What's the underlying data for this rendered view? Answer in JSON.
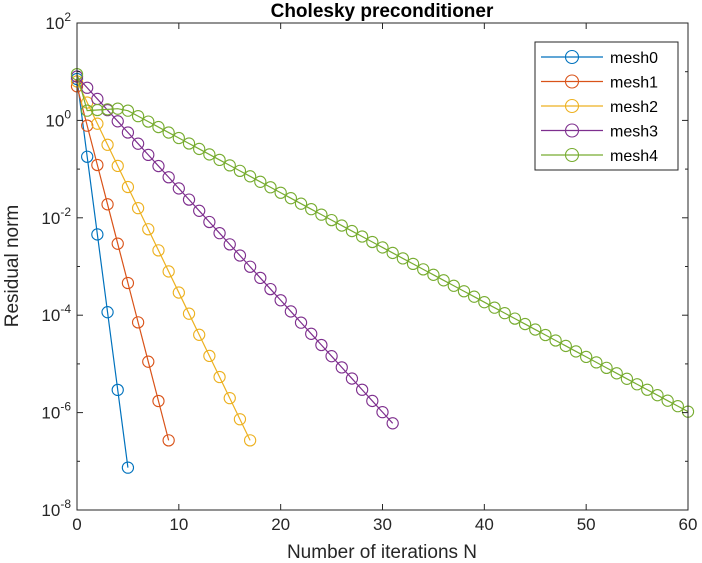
{
  "chart_data": {
    "type": "line",
    "title": "Cholesky preconditioner",
    "xlabel": "Number of iterations N",
    "ylabel": "Residual norm",
    "xlim": [
      0,
      60
    ],
    "ylim": [
      1e-08,
      100
    ],
    "yscale": "log",
    "grid": false,
    "legend_position": "top-right",
    "marker": "circle",
    "x_ticks": [
      "0",
      "10",
      "20",
      "30",
      "40",
      "50",
      "60"
    ],
    "y_ticks": [
      {
        "base": "10",
        "exp": "-8"
      },
      {
        "base": "10",
        "exp": "-6"
      },
      {
        "base": "10",
        "exp": "-4"
      },
      {
        "base": "10",
        "exp": "-2"
      },
      {
        "base": "10",
        "exp": "0"
      },
      {
        "base": "10",
        "exp": "2"
      }
    ],
    "series": [
      {
        "name": "mesh0",
        "color": "#0072BD",
        "x_start": 0,
        "x_end": 5,
        "y_start_log10": 0.85,
        "y_end_log10": -7.13
      },
      {
        "name": "mesh1",
        "color": "#D95319",
        "x_start": 0,
        "x_end": 9,
        "y_start_log10": 0.7,
        "y_end_log10": -6.57
      },
      {
        "name": "mesh2",
        "color": "#EDB120",
        "x_start": 0,
        "x_end": 17,
        "y_start_log10": 0.8,
        "y_end_log10": -6.57
      },
      {
        "name": "mesh3",
        "color": "#7E2F8E",
        "x_start": 0,
        "x_end": 31,
        "y_start_log10": 0.9,
        "y_end_log10": -6.22
      },
      {
        "name": "mesh4",
        "color": "#77AC30",
        "x_start": 0,
        "x_end": 60,
        "y_start_log10": 0.95,
        "y_end_log10": -5.98,
        "plateau": [
          [
            1,
            0.2
          ],
          [
            4,
            0.24
          ],
          [
            5,
            0.2
          ]
        ]
      }
    ]
  }
}
